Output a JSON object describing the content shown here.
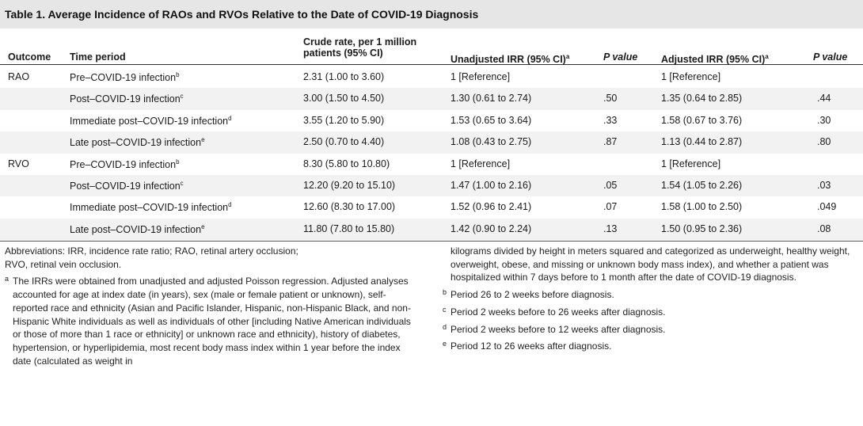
{
  "title": "Table 1. Average Incidence of RAOs and RVOs Relative to the Date of COVID-19 Diagnosis",
  "columns": {
    "outcome": "Outcome",
    "time_period": "Time period",
    "crude_rate_line1": "Crude rate, per 1 million",
    "crude_rate_line2": "patients (95% CI)",
    "unadj_irr": "Unadjusted IRR (95% CI)",
    "unadj_irr_sup": "a",
    "p_value_1": "P value",
    "adj_irr": "Adjusted IRR (95% CI)",
    "adj_irr_sup": "a",
    "p_value_2": "P value"
  },
  "rows": [
    {
      "outcome": "RAO",
      "period": "Pre–COVID-19 infection",
      "sup": "b",
      "crude": "2.31 (1.00 to 3.60)",
      "unadj": "1 [Reference]",
      "p1": "",
      "adj": "1 [Reference]",
      "p2": ""
    },
    {
      "outcome": "",
      "period": "Post–COVID-19 infection",
      "sup": "c",
      "crude": "3.00 (1.50 to 4.50)",
      "unadj": "1.30 (0.61 to 2.74)",
      "p1": ".50",
      "adj": "1.35 (0.64 to 2.85)",
      "p2": ".44"
    },
    {
      "outcome": "",
      "period": "Immediate post–COVID-19 infection",
      "sup": "d",
      "crude": "3.55 (1.20 to 5.90)",
      "unadj": "1.53 (0.65 to 3.64)",
      "p1": ".33",
      "adj": "1.58 (0.67 to 3.76)",
      "p2": ".30"
    },
    {
      "outcome": "",
      "period": "Late post–COVID-19 infection",
      "sup": "e",
      "crude": "2.50 (0.70 to 4.40)",
      "unadj": "1.08 (0.43 to 2.75)",
      "p1": ".87",
      "adj": "1.13 (0.44 to 2.87)",
      "p2": ".80"
    },
    {
      "outcome": "RVO",
      "period": "Pre–COVID-19 infection",
      "sup": "b",
      "crude": "8.30 (5.80 to 10.80)",
      "unadj": "1 [Reference]",
      "p1": "",
      "adj": "1 [Reference]",
      "p2": ""
    },
    {
      "outcome": "",
      "period": "Post–COVID-19 infection",
      "sup": "c",
      "crude": "12.20 (9.20 to 15.10)",
      "unadj": "1.47 (1.00 to 2.16)",
      "p1": ".05",
      "adj": "1.54 (1.05 to 2.26)",
      "p2": ".03"
    },
    {
      "outcome": "",
      "period": "Immediate post–COVID-19 infection",
      "sup": "d",
      "crude": "12.60 (8.30 to 17.00)",
      "unadj": "1.52 (0.96 to 2.41)",
      "p1": ".07",
      "adj": "1.58 (1.00 to 2.50)",
      "p2": ".049"
    },
    {
      "outcome": "",
      "period": "Late post–COVID-19 infection",
      "sup": "e",
      "crude": "11.80 (7.80 to 15.80)",
      "unadj": "1.42 (0.90 to 2.24)",
      "p1": ".13",
      "adj": "1.50 (0.95 to 2.36)",
      "p2": ".08"
    }
  ],
  "notes": {
    "abbreviations_line1": "Abbreviations: IRR, incidence rate ratio; RAO, retinal artery occlusion;",
    "abbreviations_line2": "RVO, retinal vein occlusion.",
    "fn_a_marker": "a",
    "fn_a_left": "The IRRs were obtained from unadjusted and adjusted Poisson regression. Adjusted analyses accounted for age at index date (in years), sex (male or female patient or unknown), self-reported race and ethnicity (Asian and Pacific Islander, Hispanic, non-Hispanic Black, and non-Hispanic White individuals as well as individuals of other [including Native American individuals or those of more than 1 race or ethnicity] or unknown race and ethnicity), history of diabetes, hypertension, or hyperlipidemia, most recent body mass index within 1 year before the index date (calculated as weight in",
    "fn_a_right": "kilograms divided by height in meters squared and categorized as underweight, healthy weight, overweight, obese, and missing or unknown body mass index), and whether a patient was hospitalized within 7 days before to 1 month after the date of COVID-19 diagnosis.",
    "fn_b_marker": "b",
    "fn_b": "Period 26 to 2 weeks before diagnosis.",
    "fn_c_marker": "c",
    "fn_c": "Period 2 weeks before to 26 weeks after diagnosis.",
    "fn_d_marker": "d",
    "fn_d": "Period 2 weeks before to 12 weeks after diagnosis.",
    "fn_e_marker": "e",
    "fn_e": "Period 12 to 26 weeks after diagnosis."
  }
}
